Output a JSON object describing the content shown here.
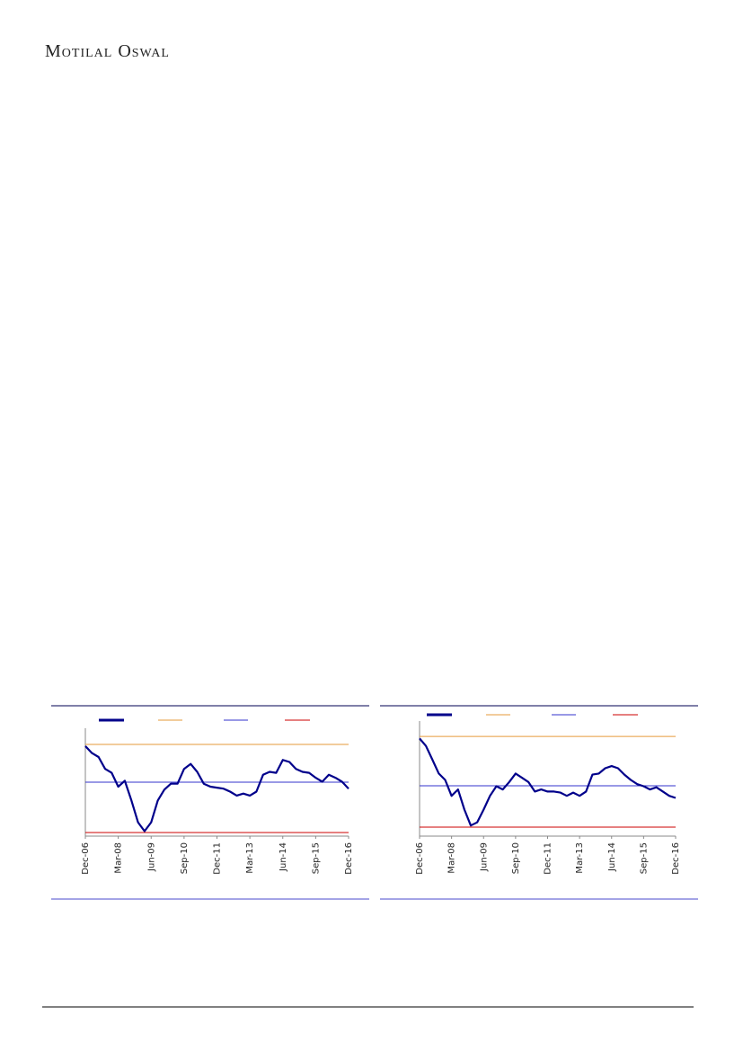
{
  "header": {
    "brand": "Motilal Oswal"
  },
  "chart_data": [
    {
      "type": "line",
      "categories": [
        "Dec-06",
        null,
        null,
        null,
        null,
        "Mar-08",
        null,
        null,
        null,
        null,
        "Jun-09",
        null,
        null,
        null,
        null,
        "Sep-10",
        null,
        null,
        null,
        null,
        "Dec-11",
        null,
        null,
        null,
        null,
        "Mar-13",
        null,
        null,
        null,
        null,
        "Jun-14",
        null,
        null,
        null,
        null,
        "Sep-15",
        null,
        null,
        null,
        null,
        "Dec-16"
      ],
      "series": [
        {
          "color": "#00008b",
          "values": [
            91,
            84,
            80,
            68,
            64,
            50,
            56,
            36,
            14,
            5,
            14,
            36,
            47,
            53,
            53,
            68,
            73,
            65,
            53,
            50,
            49,
            48,
            45,
            41,
            43,
            41,
            45,
            62,
            65,
            64,
            77,
            75,
            68,
            65,
            64,
            59,
            55,
            62,
            59,
            55,
            48
          ]
        }
      ],
      "reference_lines": [
        {
          "value": 92.7,
          "color": "#e69a3a"
        },
        {
          "value": 54.5,
          "color": "#3333cc"
        },
        {
          "value": 3.6,
          "color": "#cc0000"
        }
      ],
      "ylim": [
        0,
        100
      ]
    },
    {
      "type": "line",
      "categories": [
        "Dec-06",
        null,
        null,
        null,
        null,
        "Mar-08",
        null,
        null,
        null,
        null,
        "Jun-09",
        null,
        null,
        null,
        null,
        "Sep-10",
        null,
        null,
        null,
        null,
        "Dec-11",
        null,
        null,
        null,
        null,
        "Mar-13",
        null,
        null,
        null,
        null,
        "Jun-14",
        null,
        null,
        null,
        null,
        "Sep-15",
        null,
        null,
        null,
        null,
        "Dec-16"
      ],
      "series": [
        {
          "color": "#00008b",
          "values": [
            92,
            85,
            72,
            59,
            53,
            38,
            44,
            25,
            10,
            13,
            25,
            38,
            47,
            44,
            51,
            59,
            55,
            51,
            42,
            44,
            42,
            42,
            41,
            38,
            41,
            38,
            42,
            58,
            59,
            64,
            66,
            64,
            58,
            53,
            49,
            47,
            44,
            46,
            42,
            38,
            36
          ]
        }
      ],
      "reference_lines": [
        {
          "value": 94,
          "color": "#e69a3a"
        },
        {
          "value": 47.5,
          "color": "#3333cc"
        },
        {
          "value": 8.5,
          "color": "#cc0000"
        }
      ],
      "ylim": [
        0,
        100
      ]
    }
  ]
}
